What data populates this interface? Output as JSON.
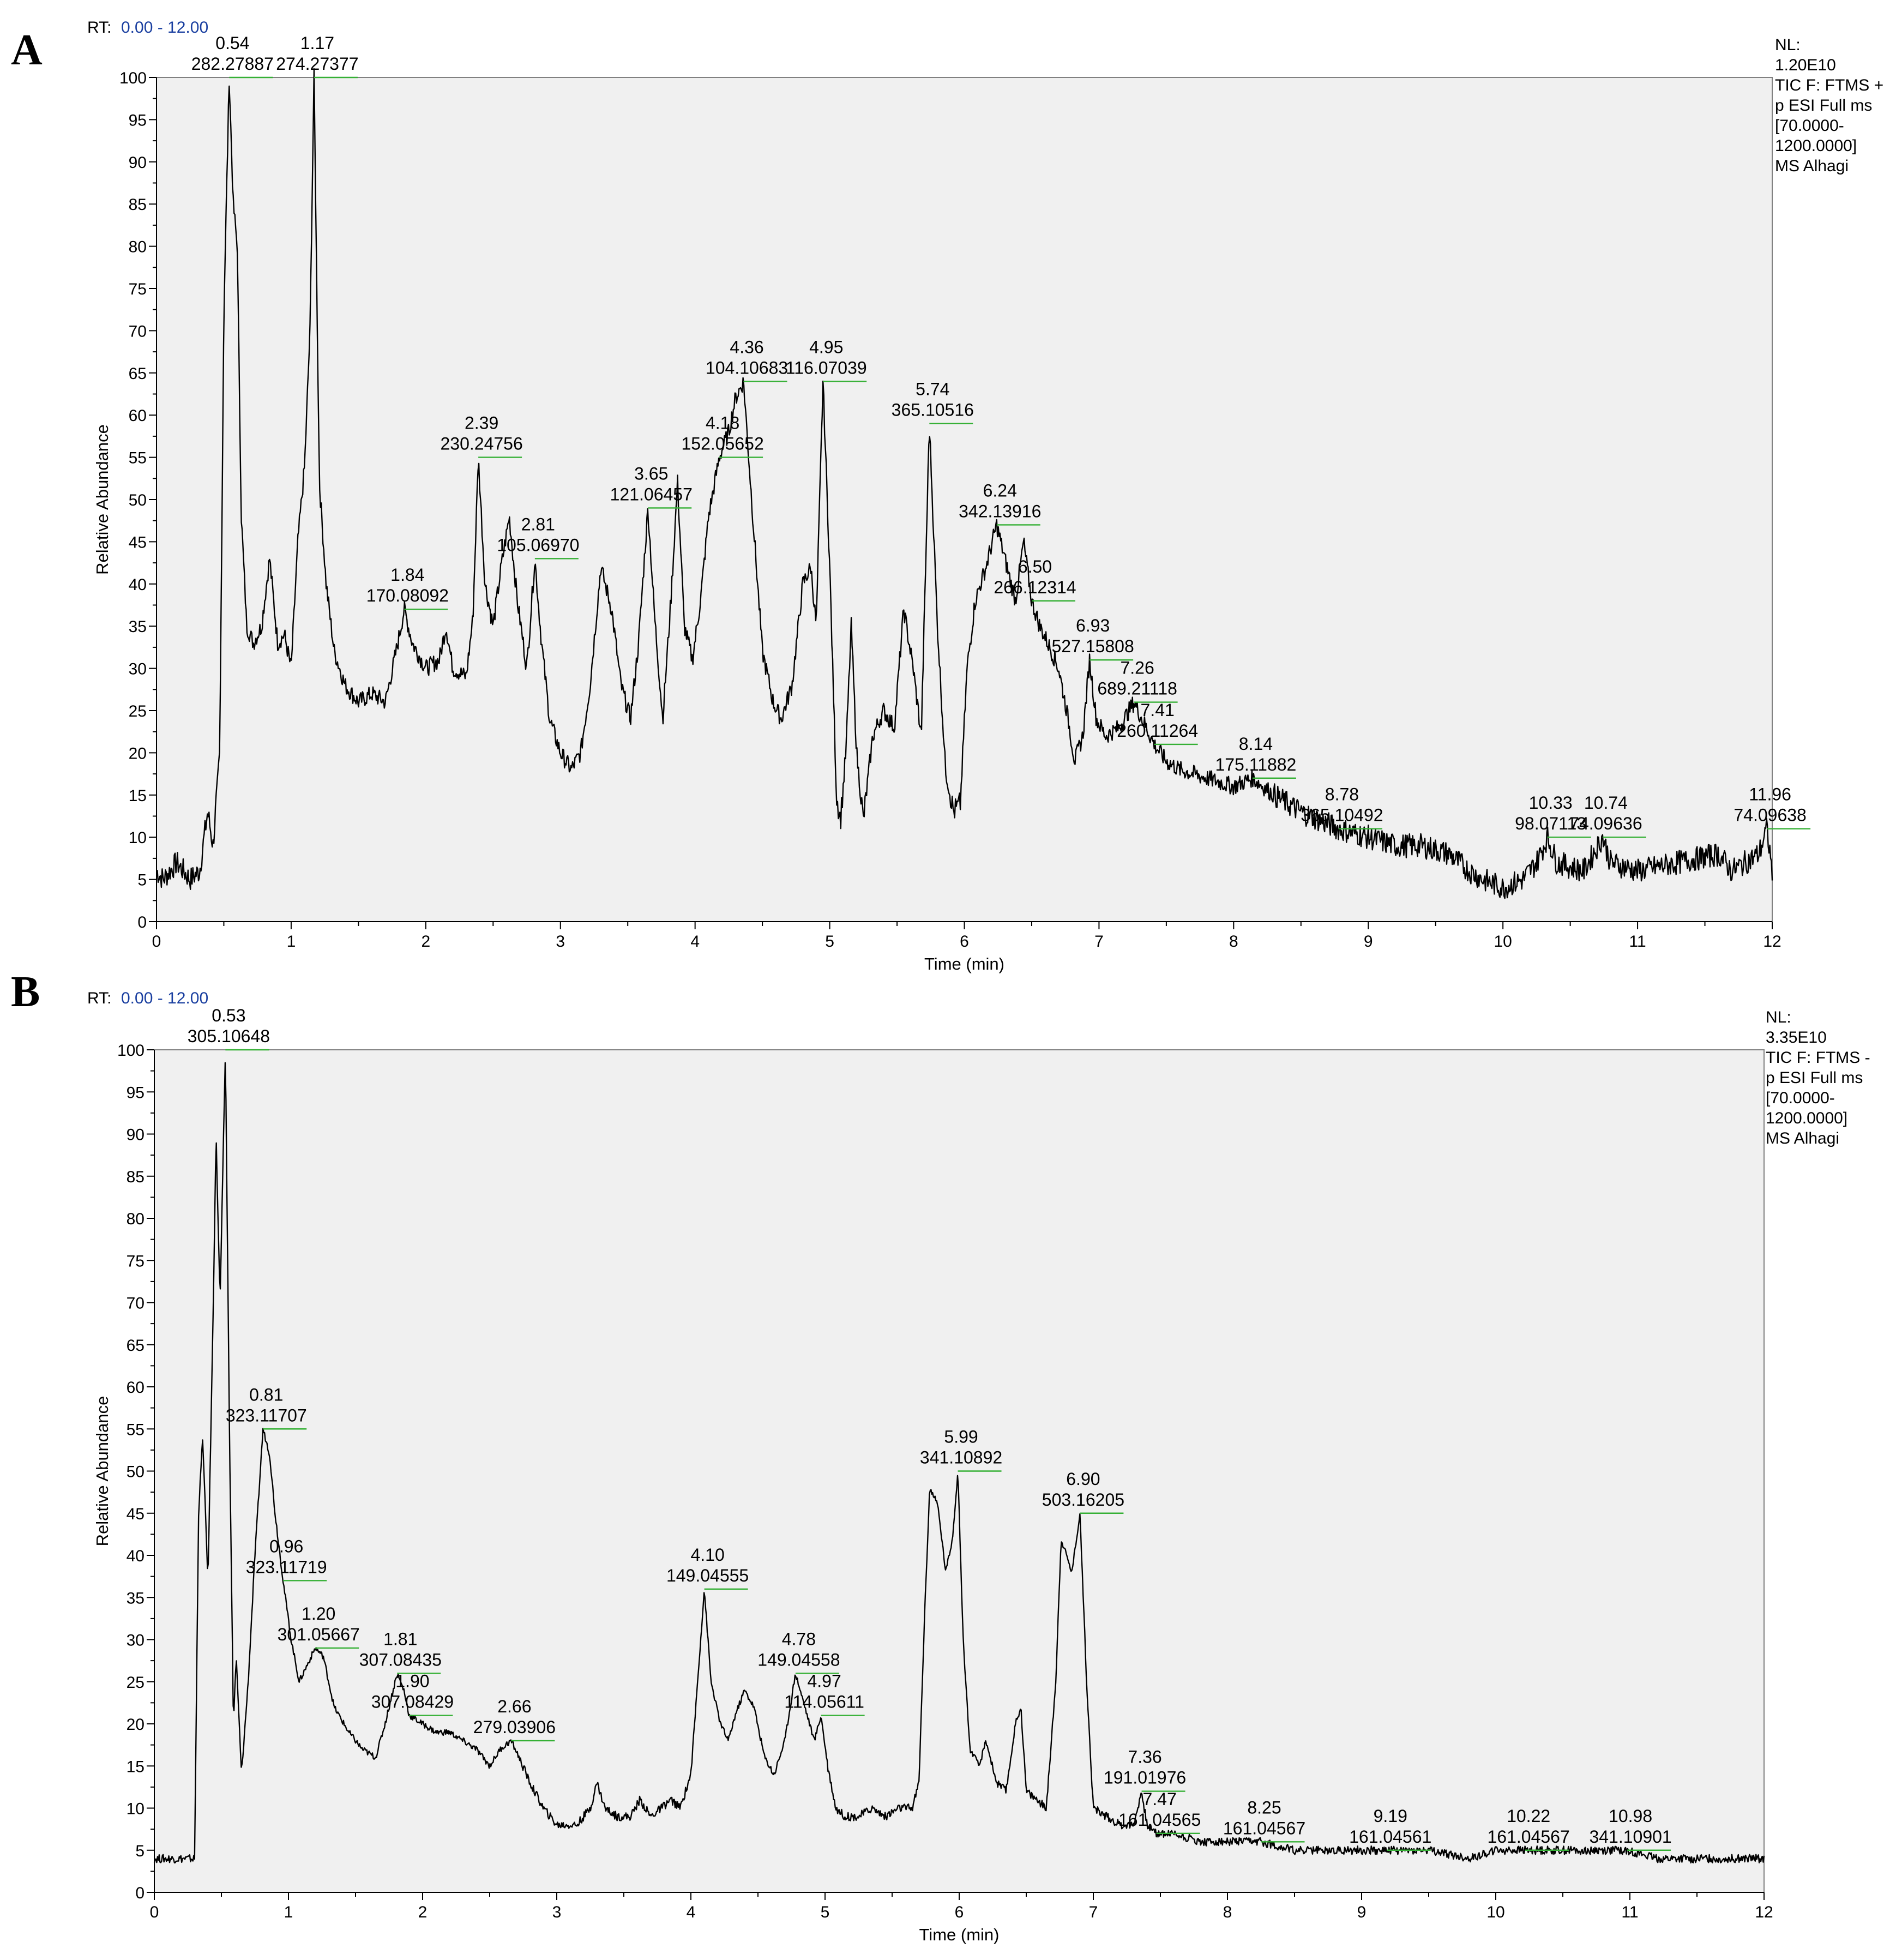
{
  "chart_data": [
    {
      "type": "line",
      "panel": "A",
      "rt_label": "RT:",
      "rt_range": "0.00 - 12.00",
      "xlabel": "Time (min)",
      "ylabel": "Relative Abundance",
      "xlim": [
        0,
        12
      ],
      "ylim": [
        0,
        100
      ],
      "xticks": [
        0,
        1,
        2,
        3,
        4,
        5,
        6,
        7,
        8,
        9,
        10,
        11,
        12
      ],
      "yticks": [
        0,
        5,
        10,
        15,
        20,
        25,
        30,
        35,
        40,
        45,
        50,
        55,
        60,
        65,
        70,
        75,
        80,
        85,
        90,
        95,
        100
      ],
      "info": [
        "NL:",
        "1.20E10",
        "TIC F: FTMS +",
        "p ESI Full ms",
        "[70.0000-",
        "1200.0000]",
        "MS Alhagi"
      ],
      "trace": [
        [
          0,
          6
        ],
        [
          0.05,
          5
        ],
        [
          0.15,
          7
        ],
        [
          0.25,
          5
        ],
        [
          0.32,
          6
        ],
        [
          0.38,
          13
        ],
        [
          0.42,
          9
        ],
        [
          0.47,
          20
        ],
        [
          0.5,
          72
        ],
        [
          0.54,
          100
        ],
        [
          0.57,
          85
        ],
        [
          0.6,
          80
        ],
        [
          0.63,
          48
        ],
        [
          0.67,
          35
        ],
        [
          0.72,
          33
        ],
        [
          0.78,
          35
        ],
        [
          0.84,
          43
        ],
        [
          0.9,
          33
        ],
        [
          0.95,
          34
        ],
        [
          1.0,
          30
        ],
        [
          1.05,
          45
        ],
        [
          1.1,
          54
        ],
        [
          1.14,
          70
        ],
        [
          1.17,
          100
        ],
        [
          1.21,
          52
        ],
        [
          1.26,
          40
        ],
        [
          1.32,
          32
        ],
        [
          1.4,
          28
        ],
        [
          1.5,
          26
        ],
        [
          1.6,
          27
        ],
        [
          1.7,
          26
        ],
        [
          1.78,
          32
        ],
        [
          1.84,
          37
        ],
        [
          1.9,
          33
        ],
        [
          2.0,
          30
        ],
        [
          2.1,
          31
        ],
        [
          2.15,
          35
        ],
        [
          2.2,
          30
        ],
        [
          2.3,
          29
        ],
        [
          2.35,
          36
        ],
        [
          2.39,
          55
        ],
        [
          2.44,
          40
        ],
        [
          2.5,
          35
        ],
        [
          2.56,
          42
        ],
        [
          2.62,
          48
        ],
        [
          2.68,
          38
        ],
        [
          2.75,
          30
        ],
        [
          2.81,
          43
        ],
        [
          2.86,
          33
        ],
        [
          2.92,
          24
        ],
        [
          3.0,
          20
        ],
        [
          3.08,
          18
        ],
        [
          3.15,
          20
        ],
        [
          3.22,
          28
        ],
        [
          3.3,
          42
        ],
        [
          3.38,
          37
        ],
        [
          3.45,
          28
        ],
        [
          3.52,
          24
        ],
        [
          3.58,
          33
        ],
        [
          3.65,
          49
        ],
        [
          3.7,
          36
        ],
        [
          3.76,
          24
        ],
        [
          3.82,
          38
        ],
        [
          3.87,
          52
        ],
        [
          3.92,
          35
        ],
        [
          3.98,
          31
        ],
        [
          4.04,
          38
        ],
        [
          4.1,
          48
        ],
        [
          4.18,
          55
        ],
        [
          4.25,
          58
        ],
        [
          4.3,
          62
        ],
        [
          4.36,
          64
        ],
        [
          4.42,
          50
        ],
        [
          4.5,
          32
        ],
        [
          4.58,
          26
        ],
        [
          4.64,
          24
        ],
        [
          4.72,
          28
        ],
        [
          4.8,
          40
        ],
        [
          4.86,
          42
        ],
        [
          4.9,
          35
        ],
        [
          4.95,
          64
        ],
        [
          5.0,
          42
        ],
        [
          5.05,
          15
        ],
        [
          5.08,
          12
        ],
        [
          5.12,
          20
        ],
        [
          5.16,
          35
        ],
        [
          5.2,
          20
        ],
        [
          5.25,
          12
        ],
        [
          5.32,
          22
        ],
        [
          5.4,
          25
        ],
        [
          5.48,
          23
        ],
        [
          5.55,
          37
        ],
        [
          5.62,
          30
        ],
        [
          5.68,
          22
        ],
        [
          5.74,
          59
        ],
        [
          5.8,
          35
        ],
        [
          5.86,
          18
        ],
        [
          5.92,
          13
        ],
        [
          5.97,
          14
        ],
        [
          6.02,
          30
        ],
        [
          6.08,
          38
        ],
        [
          6.16,
          42
        ],
        [
          6.24,
          47
        ],
        [
          6.3,
          43
        ],
        [
          6.38,
          38
        ],
        [
          6.44,
          45
        ],
        [
          6.5,
          38
        ],
        [
          6.56,
          35
        ],
        [
          6.62,
          33
        ],
        [
          6.7,
          30
        ],
        [
          6.76,
          25
        ],
        [
          6.82,
          19
        ],
        [
          6.88,
          22
        ],
        [
          6.93,
          31
        ],
        [
          6.98,
          24
        ],
        [
          7.05,
          22
        ],
        [
          7.15,
          23
        ],
        [
          7.26,
          26
        ],
        [
          7.35,
          23
        ],
        [
          7.41,
          21
        ],
        [
          7.5,
          19
        ],
        [
          7.6,
          18
        ],
        [
          7.8,
          17
        ],
        [
          8.0,
          16
        ],
        [
          8.14,
          17
        ],
        [
          8.3,
          15
        ],
        [
          8.5,
          13
        ],
        [
          8.78,
          11
        ],
        [
          9.0,
          10
        ],
        [
          9.2,
          9
        ],
        [
          9.4,
          9
        ],
        [
          9.6,
          8
        ],
        [
          9.75,
          6
        ],
        [
          9.85,
          5
        ],
        [
          10.0,
          4
        ],
        [
          10.15,
          5
        ],
        [
          10.25,
          7
        ],
        [
          10.33,
          10
        ],
        [
          10.4,
          7
        ],
        [
          10.6,
          6
        ],
        [
          10.74,
          10
        ],
        [
          10.8,
          7
        ],
        [
          11.0,
          6
        ],
        [
          11.3,
          7
        ],
        [
          11.6,
          8
        ],
        [
          11.7,
          6
        ],
        [
          11.9,
          8
        ],
        [
          11.96,
          11
        ],
        [
          12.0,
          6
        ]
      ],
      "peaks": [
        {
          "rt": "0.54",
          "mz": "282.27887"
        },
        {
          "rt": "1.17",
          "mz": "274.27377"
        },
        {
          "rt": "1.84",
          "mz": "170.08092"
        },
        {
          "rt": "2.39",
          "mz": "230.24756"
        },
        {
          "rt": "2.81",
          "mz": "105.06970"
        },
        {
          "rt": "3.65",
          "mz": "121.06457"
        },
        {
          "rt": "4.18",
          "mz": "152.05652"
        },
        {
          "rt": "4.36",
          "mz": "104.10683"
        },
        {
          "rt": "4.95",
          "mz": "116.07039"
        },
        {
          "rt": "5.74",
          "mz": "365.10516"
        },
        {
          "rt": "6.24",
          "mz": "342.13916"
        },
        {
          "rt": "6.50",
          "mz": "266.12314"
        },
        {
          "rt": "6.93",
          "mz": "527.15808"
        },
        {
          "rt": "7.26",
          "mz": "689.21118"
        },
        {
          "rt": "7.41",
          "mz": "260.11264"
        },
        {
          "rt": "8.14",
          "mz": "175.11882"
        },
        {
          "rt": "8.78",
          "mz": "365.10492"
        },
        {
          "rt": "10.33",
          "mz": "98.07113"
        },
        {
          "rt": "10.74",
          "mz": "74.09636"
        },
        {
          "rt": "11.96",
          "mz": "74.09638"
        }
      ]
    },
    {
      "type": "line",
      "panel": "B",
      "rt_label": "RT:",
      "rt_range": "0.00 - 12.00",
      "xlabel": "Time (min)",
      "ylabel": "Relative Abundance",
      "xlim": [
        0,
        12
      ],
      "ylim": [
        0,
        100
      ],
      "xticks": [
        0,
        1,
        2,
        3,
        4,
        5,
        6,
        7,
        8,
        9,
        10,
        11,
        12
      ],
      "yticks": [
        0,
        5,
        10,
        15,
        20,
        25,
        30,
        35,
        40,
        45,
        50,
        55,
        60,
        65,
        70,
        75,
        80,
        85,
        90,
        95,
        100
      ],
      "info": [
        "NL:",
        "3.35E10",
        "TIC F: FTMS -",
        "p ESI Full ms",
        "[70.0000-",
        "1200.0000]",
        "MS Alhagi"
      ],
      "trace": [
        [
          0,
          4
        ],
        [
          0.3,
          4
        ],
        [
          0.33,
          45
        ],
        [
          0.36,
          54
        ],
        [
          0.4,
          37
        ],
        [
          0.44,
          70
        ],
        [
          0.46,
          90
        ],
        [
          0.49,
          70
        ],
        [
          0.53,
          100
        ],
        [
          0.56,
          55
        ],
        [
          0.59,
          20
        ],
        [
          0.61,
          28
        ],
        [
          0.65,
          14
        ],
        [
          0.7,
          25
        ],
        [
          0.75,
          40
        ],
        [
          0.81,
          55
        ],
        [
          0.86,
          52
        ],
        [
          0.9,
          45
        ],
        [
          0.96,
          37
        ],
        [
          1.02,
          30
        ],
        [
          1.08,
          25
        ],
        [
          1.14,
          27
        ],
        [
          1.2,
          29
        ],
        [
          1.26,
          28
        ],
        [
          1.34,
          22
        ],
        [
          1.45,
          19
        ],
        [
          1.55,
          17
        ],
        [
          1.65,
          16
        ],
        [
          1.72,
          20
        ],
        [
          1.81,
          26
        ],
        [
          1.86,
          24
        ],
        [
          1.9,
          21
        ],
        [
          2.0,
          20
        ],
        [
          2.1,
          19
        ],
        [
          2.2,
          19
        ],
        [
          2.3,
          18
        ],
        [
          2.4,
          17
        ],
        [
          2.5,
          15
        ],
        [
          2.58,
          17
        ],
        [
          2.66,
          18
        ],
        [
          2.72,
          16
        ],
        [
          2.8,
          13
        ],
        [
          2.9,
          10
        ],
        [
          3.0,
          8
        ],
        [
          3.15,
          8
        ],
        [
          3.25,
          10
        ],
        [
          3.3,
          13
        ],
        [
          3.36,
          10
        ],
        [
          3.45,
          9
        ],
        [
          3.55,
          9
        ],
        [
          3.62,
          11
        ],
        [
          3.7,
          9
        ],
        [
          3.78,
          10
        ],
        [
          3.85,
          11
        ],
        [
          3.92,
          10
        ],
        [
          4.0,
          14
        ],
        [
          4.05,
          25
        ],
        [
          4.1,
          36
        ],
        [
          4.15,
          25
        ],
        [
          4.22,
          20
        ],
        [
          4.28,
          18
        ],
        [
          4.33,
          21
        ],
        [
          4.4,
          24
        ],
        [
          4.47,
          22
        ],
        [
          4.55,
          16
        ],
        [
          4.62,
          14
        ],
        [
          4.7,
          18
        ],
        [
          4.78,
          26
        ],
        [
          4.85,
          22
        ],
        [
          4.92,
          18
        ],
        [
          4.97,
          21
        ],
        [
          5.02,
          15
        ],
        [
          5.08,
          10
        ],
        [
          5.15,
          9
        ],
        [
          5.25,
          9
        ],
        [
          5.35,
          10
        ],
        [
          5.45,
          9
        ],
        [
          5.55,
          10
        ],
        [
          5.65,
          10
        ],
        [
          5.7,
          13
        ],
        [
          5.74,
          32
        ],
        [
          5.78,
          48
        ],
        [
          5.84,
          46
        ],
        [
          5.9,
          38
        ],
        [
          5.95,
          42
        ],
        [
          5.99,
          50
        ],
        [
          6.03,
          30
        ],
        [
          6.08,
          17
        ],
        [
          6.15,
          15
        ],
        [
          6.2,
          18
        ],
        [
          6.28,
          13
        ],
        [
          6.35,
          12
        ],
        [
          6.42,
          20
        ],
        [
          6.46,
          22
        ],
        [
          6.5,
          12
        ],
        [
          6.58,
          11
        ],
        [
          6.65,
          10
        ],
        [
          6.72,
          25
        ],
        [
          6.76,
          42
        ],
        [
          6.8,
          40
        ],
        [
          6.84,
          38
        ],
        [
          6.9,
          45
        ],
        [
          6.95,
          25
        ],
        [
          7.0,
          10
        ],
        [
          7.1,
          9
        ],
        [
          7.2,
          8
        ],
        [
          7.3,
          8
        ],
        [
          7.36,
          12
        ],
        [
          7.4,
          8
        ],
        [
          7.47,
          7
        ],
        [
          7.6,
          7
        ],
        [
          7.8,
          6
        ],
        [
          8.0,
          6
        ],
        [
          8.25,
          6
        ],
        [
          8.5,
          5
        ],
        [
          8.8,
          5
        ],
        [
          9.19,
          5
        ],
        [
          9.5,
          5
        ],
        [
          9.8,
          4
        ],
        [
          10.0,
          5
        ],
        [
          10.22,
          5
        ],
        [
          10.5,
          5
        ],
        [
          10.8,
          5
        ],
        [
          10.98,
          5
        ],
        [
          11.2,
          4
        ],
        [
          11.5,
          4
        ],
        [
          11.8,
          4
        ],
        [
          12.0,
          4
        ]
      ],
      "peaks": [
        {
          "rt": "0.53",
          "mz": "305.10648"
        },
        {
          "rt": "0.81",
          "mz": "323.11707"
        },
        {
          "rt": "0.96",
          "mz": "323.11719"
        },
        {
          "rt": "1.20",
          "mz": "301.05667"
        },
        {
          "rt": "1.81",
          "mz": "307.08435"
        },
        {
          "rt": "1.90",
          "mz": "307.08429"
        },
        {
          "rt": "2.66",
          "mz": "279.03906"
        },
        {
          "rt": "4.10",
          "mz": "149.04555"
        },
        {
          "rt": "4.78",
          "mz": "149.04558"
        },
        {
          "rt": "4.97",
          "mz": "114.05611"
        },
        {
          "rt": "5.99",
          "mz": "341.10892"
        },
        {
          "rt": "6.90",
          "mz": "503.16205"
        },
        {
          "rt": "7.36",
          "mz": "191.01976"
        },
        {
          "rt": "7.47",
          "mz": "161.04565"
        },
        {
          "rt": "8.25",
          "mz": "161.04567"
        },
        {
          "rt": "9.19",
          "mz": "161.04561"
        },
        {
          "rt": "10.22",
          "mz": "161.04567"
        },
        {
          "rt": "10.98",
          "mz": "341.10901"
        }
      ]
    }
  ]
}
